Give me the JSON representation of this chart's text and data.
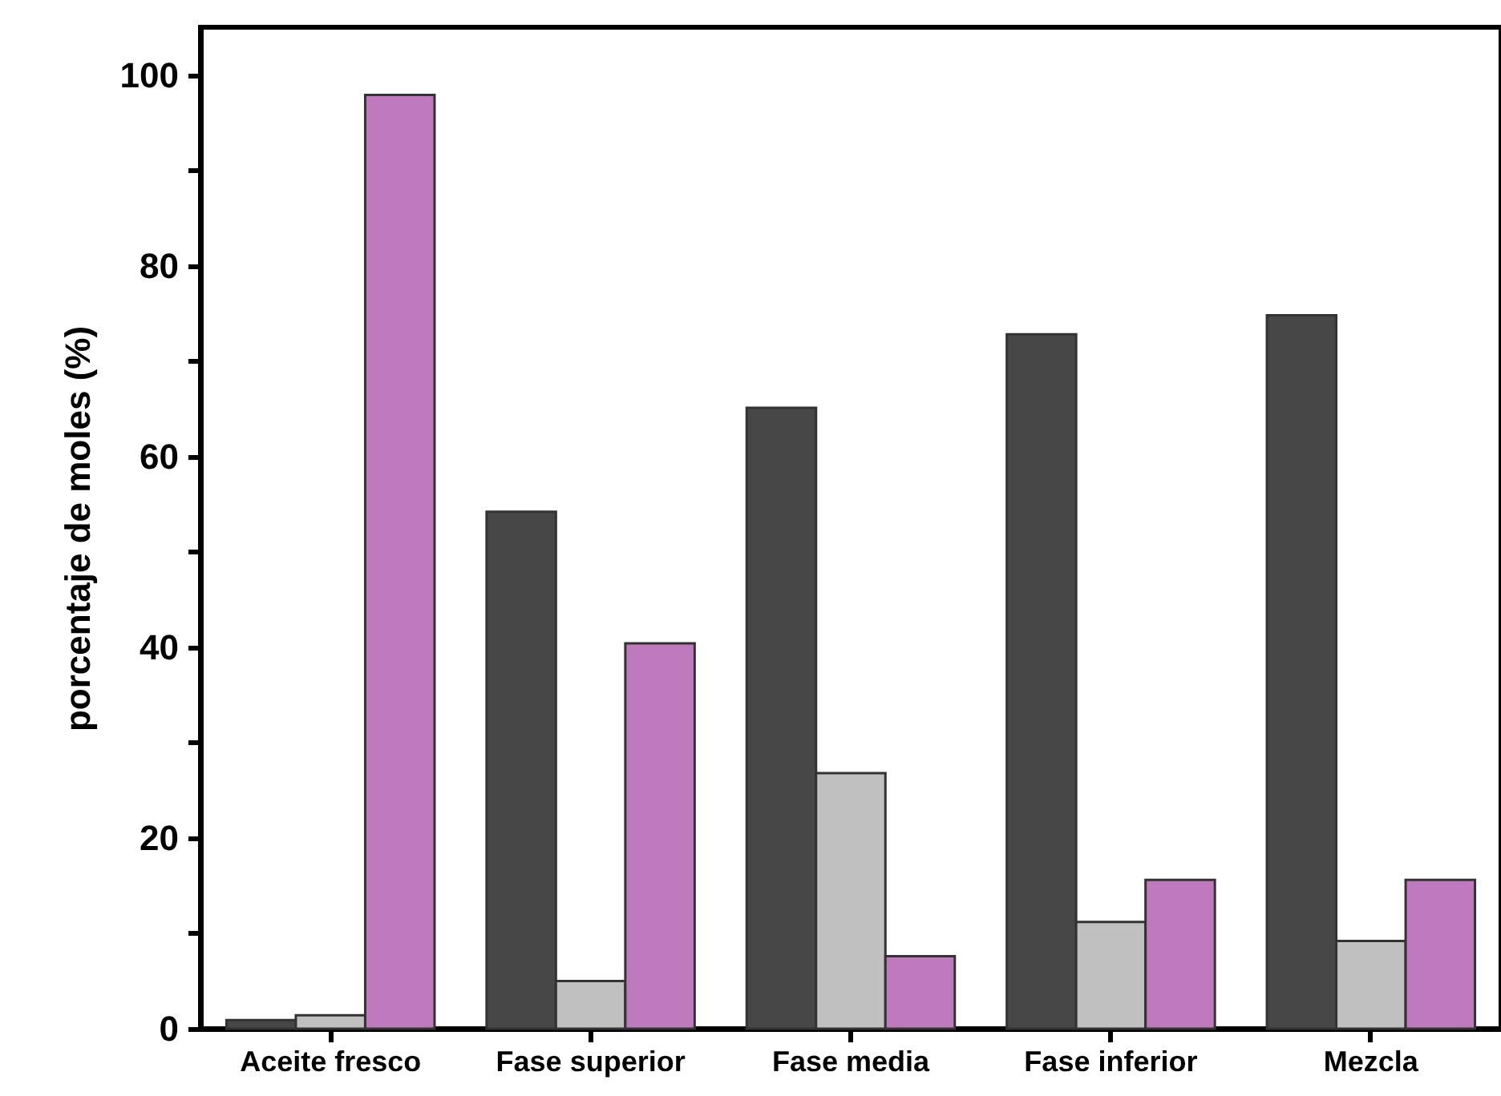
{
  "chart_data": {
    "type": "bar",
    "ylabel": "porcentaje de moles (%)",
    "categories": [
      "Aceite fresco",
      "Fase superior",
      "Fase media",
      "Fase inferior",
      "Mezcla"
    ],
    "series": [
      {
        "color": "#474747",
        "values": [
          0.9,
          54.2,
          65.1,
          72.8,
          74.8
        ]
      },
      {
        "color": "#c0c0c0",
        "values": [
          1.4,
          5.0,
          26.8,
          11.2,
          9.2
        ]
      },
      {
        "color": "#be7abd",
        "values": [
          97.9,
          40.4,
          7.6,
          15.6,
          15.6
        ]
      }
    ],
    "ylim": [
      0,
      105
    ],
    "yticks": [
      0,
      {
        "value": 10,
        "label": null
      },
      20,
      {
        "value": 30,
        "label": null
      },
      40,
      {
        "value": 50,
        "label": null
      },
      60,
      {
        "value": 70,
        "label": null
      },
      80,
      {
        "value": 90,
        "label": null
      },
      100
    ],
    "grid": false
  }
}
